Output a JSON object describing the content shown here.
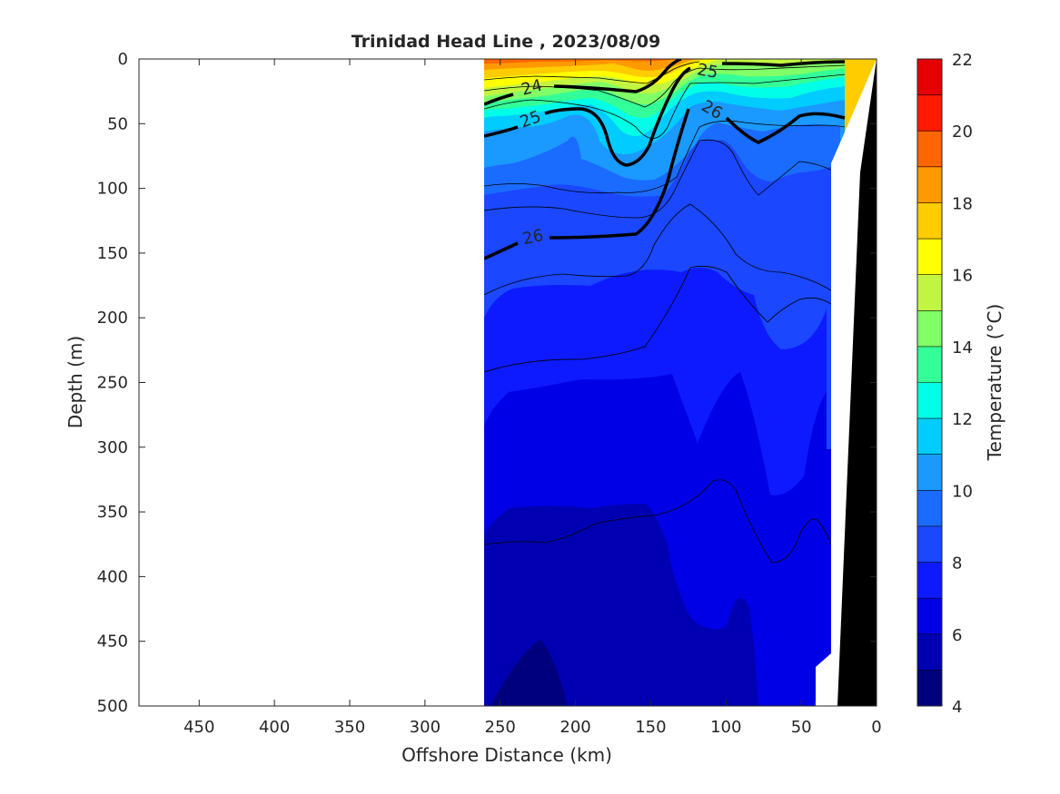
{
  "chart_data": {
    "type": "heatmap",
    "title": "Trinidad Head Line , 2023/08/09",
    "xlabel": "Offshore Distance (km)",
    "ylabel": "Depth (m)",
    "xlim": [
      490,
      0
    ],
    "ylim": [
      0,
      500
    ],
    "x_reversed": true,
    "y_reversed": true,
    "x_ticks": [
      450,
      400,
      350,
      300,
      250,
      200,
      150,
      100,
      50,
      0
    ],
    "y_ticks": [
      0,
      50,
      100,
      150,
      200,
      250,
      300,
      350,
      400,
      450,
      500
    ],
    "colorbar": {
      "label": "Temperature (°C)",
      "ticks": [
        4,
        6,
        8,
        10,
        12,
        14,
        16,
        18,
        20,
        22
      ],
      "levels": [
        4,
        5,
        6,
        7,
        8,
        9,
        10,
        11,
        12,
        13,
        14,
        15,
        16,
        17,
        18,
        19,
        20,
        21,
        22
      ],
      "colors": [
        "#00007f",
        "#0000b3",
        "#0000e6",
        "#0d1aff",
        "#1a47ff",
        "#1a6bff",
        "#1a99ff",
        "#00ccff",
        "#00ffe6",
        "#33ff99",
        "#80ff66",
        "#c2f542",
        "#ffff00",
        "#ffcc00",
        "#ff9900",
        "#ff6600",
        "#ff1a00",
        "#e60000"
      ]
    },
    "isopycnal_labels": [
      "24",
      "25",
      "25",
      "26",
      "26"
    ],
    "isopycnal_values": [
      24,
      25,
      26
    ],
    "data_extent_km": [
      260,
      20
    ],
    "temperature_profile": {
      "depth_m": [
        0,
        25,
        50,
        75,
        100,
        150,
        200,
        250,
        300,
        350,
        400,
        450,
        500
      ],
      "temp_c": [
        18,
        16,
        11,
        10,
        9,
        8.5,
        8,
        7.5,
        7,
        6.5,
        6,
        5.5,
        5
      ]
    },
    "grid": false
  }
}
